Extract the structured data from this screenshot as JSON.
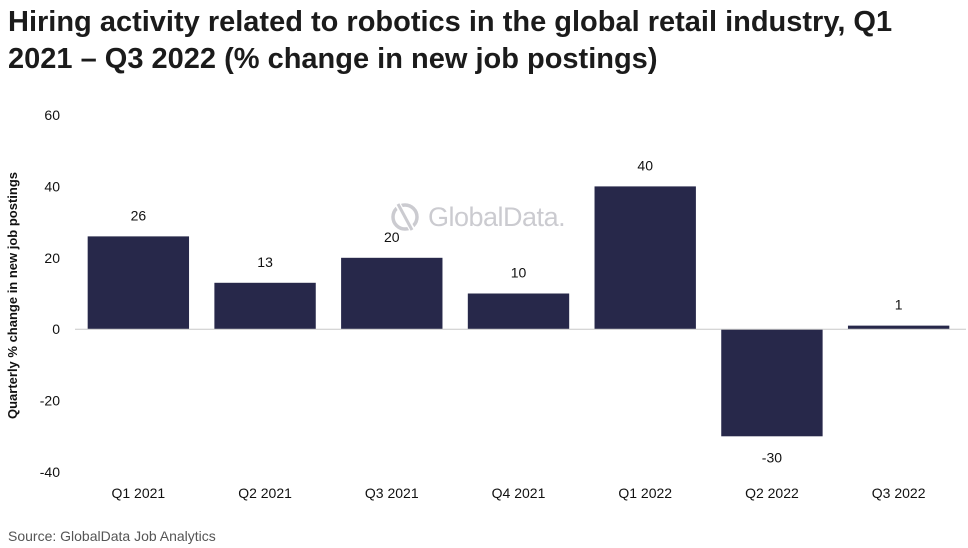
{
  "title": "Hiring activity related to robotics in the global retail industry, Q1 2021 – Q3 2022 (% change in new job postings)",
  "source": "Source: GlobalData Job Analytics",
  "watermark": "GlobalData.",
  "colors": {
    "bar": "#27284a",
    "zero_line": "#c8c8c8",
    "text": "#111111"
  },
  "chart_data": {
    "type": "bar",
    "title": "Hiring activity related to robotics in the global retail industry, Q1 2021 – Q3 2022 (% change in new job postings)",
    "xlabel": "",
    "ylabel": "Quarterly % change in new job postings",
    "categories": [
      "Q1 2021",
      "Q2 2021",
      "Q3 2021",
      "Q4 2021",
      "Q1 2022",
      "Q2 2022",
      "Q3 2022"
    ],
    "values": [
      26,
      13,
      20,
      10,
      40,
      -30,
      1
    ],
    "ylim": [
      -40,
      60
    ],
    "yticks": [
      60,
      40,
      20,
      0,
      -20,
      -40
    ],
    "grid": false,
    "legend": "none"
  }
}
